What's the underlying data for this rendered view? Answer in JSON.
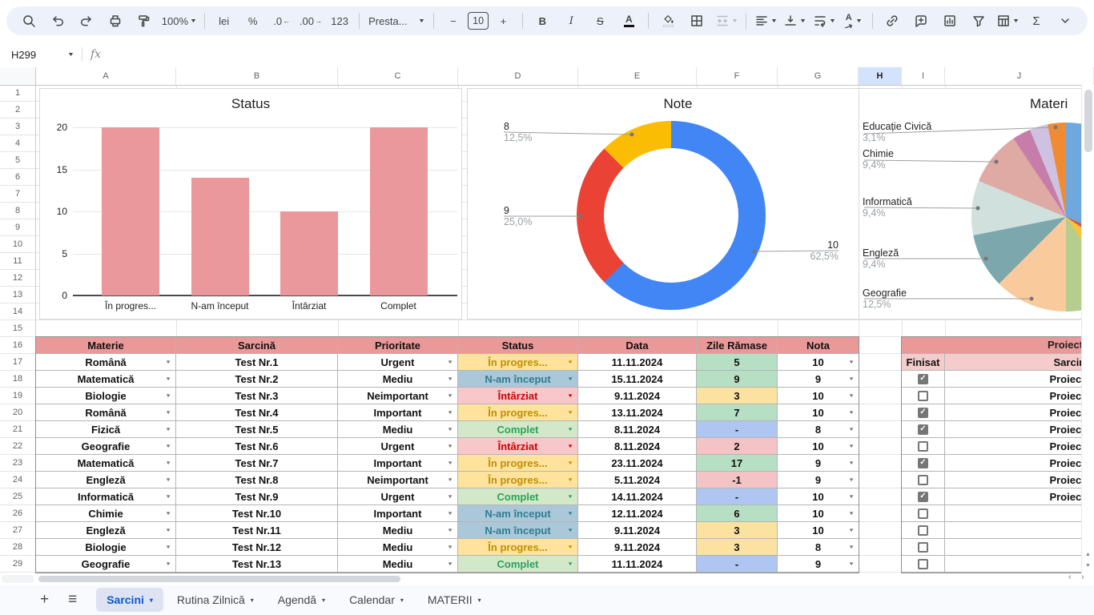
{
  "toolbar": {
    "zoom": "100%",
    "currency": "lei",
    "percent": "%",
    "decrease_decimals": ".0",
    "increase_decimals": ".00",
    "number_format": "123",
    "font_name": "Presta...",
    "font_size": "10",
    "minus": "−",
    "plus": "+",
    "bold": "B",
    "italic": "I",
    "strikethrough": "S",
    "text_color": "A",
    "text_rotation": "A",
    "functions": "Σ"
  },
  "name_box": {
    "value": "H299",
    "fx_label": "fx"
  },
  "grid": {
    "columns": [
      "A",
      "B",
      "C",
      "D",
      "E",
      "F",
      "G",
      "H",
      "I",
      "J"
    ],
    "highlighted_column": "H",
    "rows": [
      "1",
      "2",
      "3",
      "4",
      "5",
      "6",
      "7",
      "8",
      "9",
      "10",
      "11",
      "12",
      "13",
      "14",
      "15",
      "16",
      "17",
      "18",
      "19",
      "20",
      "21",
      "22",
      "23",
      "24",
      "25",
      "26",
      "27",
      "28",
      "29"
    ]
  },
  "chart_data": [
    {
      "type": "bar",
      "title": "Status",
      "categories": [
        "În progres...",
        "N-am început",
        "Întârziat",
        "Complet"
      ],
      "values": [
        20,
        14,
        10,
        20
      ],
      "xlabel": "",
      "ylabel": "",
      "ylim": [
        0,
        20
      ],
      "yticks": [
        0,
        5,
        10,
        15,
        20
      ],
      "grid": true,
      "legend": "none",
      "bar_color": "#ea989b"
    },
    {
      "type": "pie",
      "subtype": "donut",
      "title": "Note",
      "labels": [
        "10",
        "9",
        "8"
      ],
      "values": [
        62.5,
        25.0,
        12.5
      ],
      "percent_labels": [
        "62,5%",
        "25,0%",
        "12,5%"
      ],
      "colors": [
        "#4285f4",
        "#ea4335",
        "#fbbc04"
      ],
      "legend": "outside-leader-lines"
    },
    {
      "type": "pie",
      "title": "Materi",
      "note": "chart clipped at right edge of viewport",
      "labeled_slices": [
        {
          "label": "Educație Civică",
          "pct": "3,1%"
        },
        {
          "label": "Chimie",
          "pct": "9,4%"
        },
        {
          "label": "Informatică",
          "pct": "9,4%"
        },
        {
          "label": "Engleză",
          "pct": "9,4%"
        },
        {
          "label": "Geografie",
          "pct": "12,5%"
        }
      ],
      "slices": [
        {
          "name": "unlabeled-blue",
          "value": 31.25,
          "color": "#6fa8dc"
        },
        {
          "name": "unlabeled-dark-red",
          "value": 3.125,
          "color": "#cf5b4c"
        },
        {
          "name": "unlabeled-yellow",
          "value": 6.25,
          "color": "#f5c542"
        },
        {
          "name": "unlabeled-green",
          "value": 9.375,
          "color": "#b5cd8d"
        },
        {
          "name": "Geografie",
          "value": 12.5,
          "color": "#f9cb9c"
        },
        {
          "name": "Engleză",
          "value": 9.375,
          "color": "#7ba7ad"
        },
        {
          "name": "Informatică",
          "value": 9.375,
          "color": "#d0e0dd"
        },
        {
          "name": "Chimie",
          "value": 9.375,
          "color": "#dfa9a4"
        },
        {
          "name": "unlabeled-mauve",
          "value": 3.125,
          "color": "#c77daa"
        },
        {
          "name": "unlabeled-lavender",
          "value": 3.125,
          "color": "#cec2e0"
        },
        {
          "name": "Educație Civică",
          "value": 3.125,
          "color": "#ef8b33"
        }
      ]
    }
  ],
  "main_table": {
    "headers": [
      "Materie",
      "Sarcină",
      "Prioritate",
      "Status",
      "Data",
      "Zile Rămase",
      "Nota"
    ],
    "rows": [
      {
        "materie": "Română",
        "sarcina": "Test Nr.1",
        "prioritate": "Urgent",
        "status": "În progres...",
        "status_key": "progress",
        "data": "11.11.2024",
        "zile": "5",
        "zile_key": "green",
        "nota": "10"
      },
      {
        "materie": "Matematică",
        "sarcina": "Test Nr.2",
        "prioritate": "Mediu",
        "status": "N-am început",
        "status_key": "notstarted",
        "data": "15.11.2024",
        "zile": "9",
        "zile_key": "green",
        "nota": "9"
      },
      {
        "materie": "Biologie",
        "sarcina": "Test Nr.3",
        "prioritate": "Neimportant",
        "status": "Întârziat",
        "status_key": "late",
        "data": "9.11.2024",
        "zile": "3",
        "zile_key": "yellow",
        "nota": "10"
      },
      {
        "materie": "Română",
        "sarcina": "Test Nr.4",
        "prioritate": "Important",
        "status": "În progres...",
        "status_key": "progress",
        "data": "13.11.2024",
        "zile": "7",
        "zile_key": "green",
        "nota": "10"
      },
      {
        "materie": "Fizică",
        "sarcina": "Test Nr.5",
        "prioritate": "Mediu",
        "status": "Complet",
        "status_key": "done",
        "data": "8.11.2024",
        "zile": "-",
        "zile_key": "blue",
        "nota": "8"
      },
      {
        "materie": "Geografie",
        "sarcina": "Test Nr.6",
        "prioritate": "Urgent",
        "status": "Întârziat",
        "status_key": "late",
        "data": "8.11.2024",
        "zile": "2",
        "zile_key": "pink",
        "nota": "10"
      },
      {
        "materie": "Matematică",
        "sarcina": "Test Nr.7",
        "prioritate": "Important",
        "status": "În progres...",
        "status_key": "progress",
        "data": "23.11.2024",
        "zile": "17",
        "zile_key": "green",
        "nota": "9"
      },
      {
        "materie": "Engleză",
        "sarcina": "Test Nr.8",
        "prioritate": "Neimportant",
        "status": "În progres...",
        "status_key": "progress",
        "data": "5.11.2024",
        "zile": "-1",
        "zile_key": "pink",
        "nota": "9"
      },
      {
        "materie": "Informatică",
        "sarcina": "Test Nr.9",
        "prioritate": "Urgent",
        "status": "Complet",
        "status_key": "done",
        "data": "14.11.2024",
        "zile": "-",
        "zile_key": "blue",
        "nota": "10"
      },
      {
        "materie": "Chimie",
        "sarcina": "Test Nr.10",
        "prioritate": "Important",
        "status": "N-am început",
        "status_key": "notstarted",
        "data": "12.11.2024",
        "zile": "6",
        "zile_key": "green",
        "nota": "10"
      },
      {
        "materie": "Engleză",
        "sarcina": "Test Nr.11",
        "prioritate": "Mediu",
        "status": "N-am început",
        "status_key": "notstarted",
        "data": "9.11.2024",
        "zile": "3",
        "zile_key": "yellow",
        "nota": "10"
      },
      {
        "materie": "Biologie",
        "sarcina": "Test Nr.12",
        "prioritate": "Mediu",
        "status": "În progres...",
        "status_key": "progress",
        "data": "9.11.2024",
        "zile": "3",
        "zile_key": "yellow",
        "nota": "8"
      },
      {
        "materie": "Geografie",
        "sarcina": "Test Nr.13",
        "prioritate": "Mediu",
        "status": "Complet",
        "status_key": "done",
        "data": "11.11.2024",
        "zile": "-",
        "zile_key": "blue",
        "nota": "9"
      }
    ]
  },
  "right_table": {
    "title": "Proiect",
    "headers": [
      "Finisat",
      "Sarcina"
    ],
    "rows": [
      {
        "checked": true,
        "label": "Proiect N"
      },
      {
        "checked": false,
        "label": "Proiect N"
      },
      {
        "checked": true,
        "label": "Proiect N"
      },
      {
        "checked": true,
        "label": "Proiect N"
      },
      {
        "checked": false,
        "label": "Proiect N"
      },
      {
        "checked": true,
        "label": "Proiect N"
      },
      {
        "checked": false,
        "label": "Proiect N"
      },
      {
        "checked": true,
        "label": "Proiect N"
      },
      {
        "checked": false,
        "label": ""
      },
      {
        "checked": false,
        "label": ""
      },
      {
        "checked": false,
        "label": ""
      },
      {
        "checked": false,
        "label": ""
      }
    ]
  },
  "tabs": {
    "items": [
      {
        "label": "Sarcini",
        "active": true
      },
      {
        "label": "Rutina Zilnică",
        "active": false
      },
      {
        "label": "Agendă",
        "active": false
      },
      {
        "label": "Calendar",
        "active": false
      },
      {
        "label": "MATERII",
        "active": false
      }
    ]
  },
  "colors": {
    "accent_blue": "#0b57d0",
    "toolbar_bg": "#edf2fa",
    "tab_active_bg": "#dde3f2",
    "col_highlight": "#d3e3fd",
    "header_red": "#ea9999",
    "subheader_pink": "#f4cccc",
    "status": {
      "progress": {
        "bg": "#ffe39c",
        "text": "#bf9000"
      },
      "notstarted": {
        "bg": "#abc8da",
        "text": "#2f7d8f"
      },
      "late": {
        "bg": "#f8c7ca",
        "text": "#cc0000"
      },
      "done": {
        "bg": "#d2e8c9",
        "text": "#2aa45c"
      }
    },
    "zile": {
      "green": "#b7dfc3",
      "yellow": "#fbe2a0",
      "blue": "#aec6f1",
      "pink": "#f4c3c6"
    }
  }
}
